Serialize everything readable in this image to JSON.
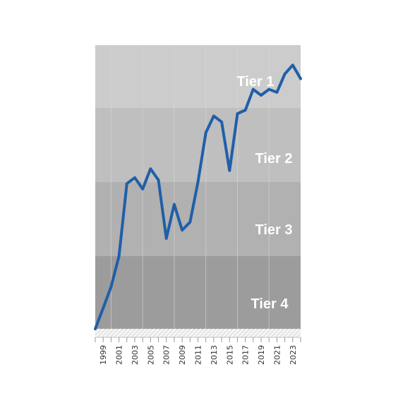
{
  "chart_data": {
    "type": "line",
    "title": "",
    "xlabel": "",
    "ylabel": "",
    "xlim": [
      1998,
      2024
    ],
    "x_tick_labels": [
      "1999",
      "2001",
      "2003",
      "2005",
      "2007",
      "2009",
      "2011",
      "2013",
      "2015",
      "2017",
      "2019",
      "2021",
      "2023"
    ],
    "bands": [
      {
        "label": "Tier 1",
        "color": "#cccccc"
      },
      {
        "label": "Tier 2",
        "color": "#bfbfbf"
      },
      {
        "label": "Tier 3",
        "color": "#b1b1b1"
      },
      {
        "label": "Tier 4",
        "color": "#a3a3a3"
      }
    ],
    "band_scale_note": "Tier 1 top",
    "series": [
      {
        "color": "#1f5fa8",
        "x": [
          1998,
          1999,
          2000,
          2001,
          2002,
          2003,
          2004,
          2005,
          2006,
          2007,
          2008,
          2009,
          2010,
          2011,
          2012,
          2013,
          2014,
          2015,
          2016,
          2017,
          2018,
          2019,
          2020,
          2021,
          2022,
          2023,
          2024
        ],
        "y": [
          0.0,
          0.7,
          1.42,
          2.45,
          4.9,
          5.1,
          4.72,
          5.4,
          5.02,
          3.05,
          4.2,
          3.33,
          3.6,
          4.95,
          6.62,
          7.18,
          6.98,
          5.34,
          7.26,
          7.38,
          8.08,
          7.88,
          8.08,
          7.98,
          8.6,
          8.9,
          8.44
        ]
      }
    ]
  }
}
